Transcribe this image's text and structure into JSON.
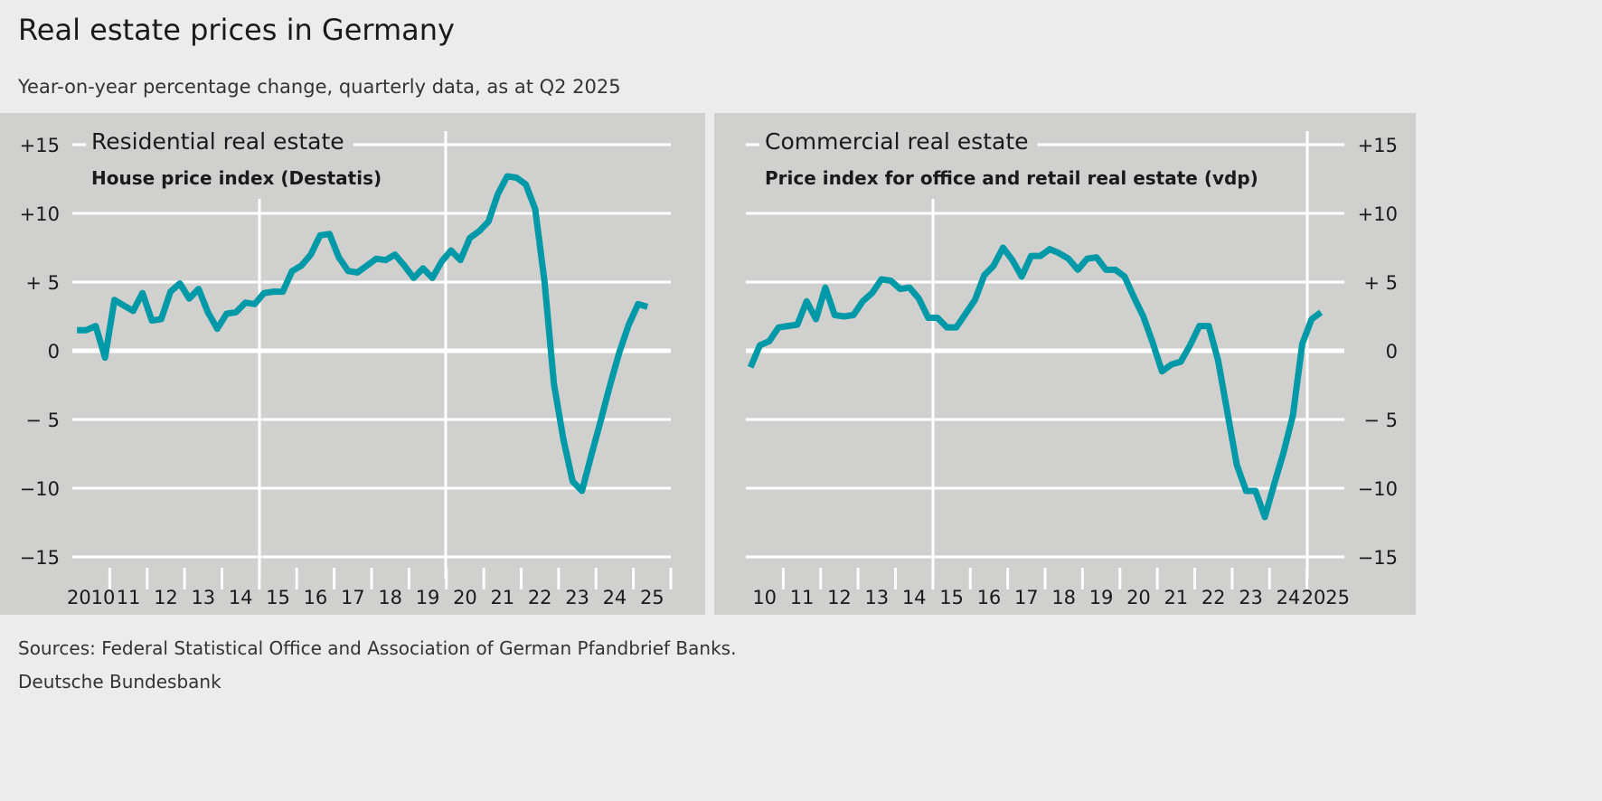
{
  "title": "Real estate prices in Germany",
  "subtitle": "Year-on-year percentage change, quarterly data, as at Q2 2025",
  "footer": {
    "sources": "Sources: Federal Statistical Office and Association of German Pfandbrief Banks.",
    "publisher": "Deutsche Bundesbank"
  },
  "colors": {
    "line": "#0099a8",
    "panel": "#d0d0ce",
    "background": "#ececec",
    "grid": "#ffffff"
  },
  "chart_data": [
    {
      "type": "line",
      "title": "Residential real estate",
      "subtitle": "House price index (Destatis)",
      "x_start": "2010 Q1",
      "x_end": "2025 Q2",
      "frequency": "quarterly",
      "ylim": [
        -15,
        15
      ],
      "yticks": [
        15,
        10,
        5,
        0,
        -5,
        -10,
        -15
      ],
      "ytick_labels": [
        "+15",
        "+10",
        "+ 5",
        "0",
        "− 5",
        "−10",
        "−15"
      ],
      "xtick_labels": [
        "2010",
        "11",
        "12",
        "13",
        "14",
        "15",
        "16",
        "17",
        "18",
        "19",
        "20",
        "21",
        "22",
        "23",
        "24",
        "25"
      ],
      "axis_side": "left",
      "grid": true,
      "values": [
        1.5,
        1.5,
        1.8,
        -0.5,
        3.7,
        3.3,
        2.9,
        4.2,
        2.2,
        2.3,
        4.3,
        4.9,
        3.8,
        4.5,
        2.8,
        1.6,
        2.7,
        2.8,
        3.5,
        3.4,
        4.2,
        4.3,
        4.3,
        5.8,
        6.2,
        7.0,
        8.4,
        8.5,
        6.8,
        5.8,
        5.7,
        6.2,
        6.7,
        6.6,
        7.0,
        6.2,
        5.3,
        6.0,
        5.3,
        6.5,
        7.3,
        6.6,
        8.2,
        8.7,
        9.4,
        11.4,
        12.7,
        12.6,
        12.1,
        10.3,
        5.0,
        -2.4,
        -6.4,
        -9.5,
        -10.2,
        -7.6,
        -5.1,
        -2.5,
        -0.1,
        1.9,
        3.4,
        3.2
      ]
    },
    {
      "type": "line",
      "title": "Commercial real estate",
      "subtitle": "Price index for office and retail real estate (vdp)",
      "x_start": "2010 Q1",
      "x_end": "2025 Q2",
      "frequency": "quarterly",
      "ylim": [
        -15,
        15
      ],
      "yticks": [
        15,
        10,
        5,
        0,
        -5,
        -10,
        -15
      ],
      "ytick_labels": [
        "+15",
        "+10",
        "+ 5",
        "0",
        "− 5",
        "−10",
        "−15"
      ],
      "xtick_labels": [
        "10",
        "11",
        "12",
        "13",
        "14",
        "15",
        "16",
        "17",
        "18",
        "19",
        "20",
        "21",
        "22",
        "23",
        "24",
        "2025"
      ],
      "axis_side": "right",
      "grid": true,
      "values": [
        -1.2,
        0.4,
        0.7,
        1.7,
        1.8,
        1.9,
        3.6,
        2.3,
        4.6,
        2.6,
        2.5,
        2.6,
        3.6,
        4.2,
        5.2,
        5.1,
        4.5,
        4.6,
        3.8,
        2.4,
        2.4,
        1.7,
        1.7,
        2.7,
        3.7,
        5.5,
        6.2,
        7.5,
        6.6,
        5.4,
        6.9,
        6.9,
        7.4,
        7.1,
        6.7,
        5.9,
        6.7,
        6.8,
        5.9,
        5.9,
        5.4,
        3.9,
        2.5,
        0.6,
        -1.5,
        -1.0,
        -0.8,
        0.4,
        1.8,
        1.8,
        -0.7,
        -4.5,
        -8.3,
        -10.2,
        -10.2,
        -12.1,
        -9.7,
        -7.4,
        -4.7,
        0.5,
        2.3,
        2.8
      ]
    }
  ]
}
